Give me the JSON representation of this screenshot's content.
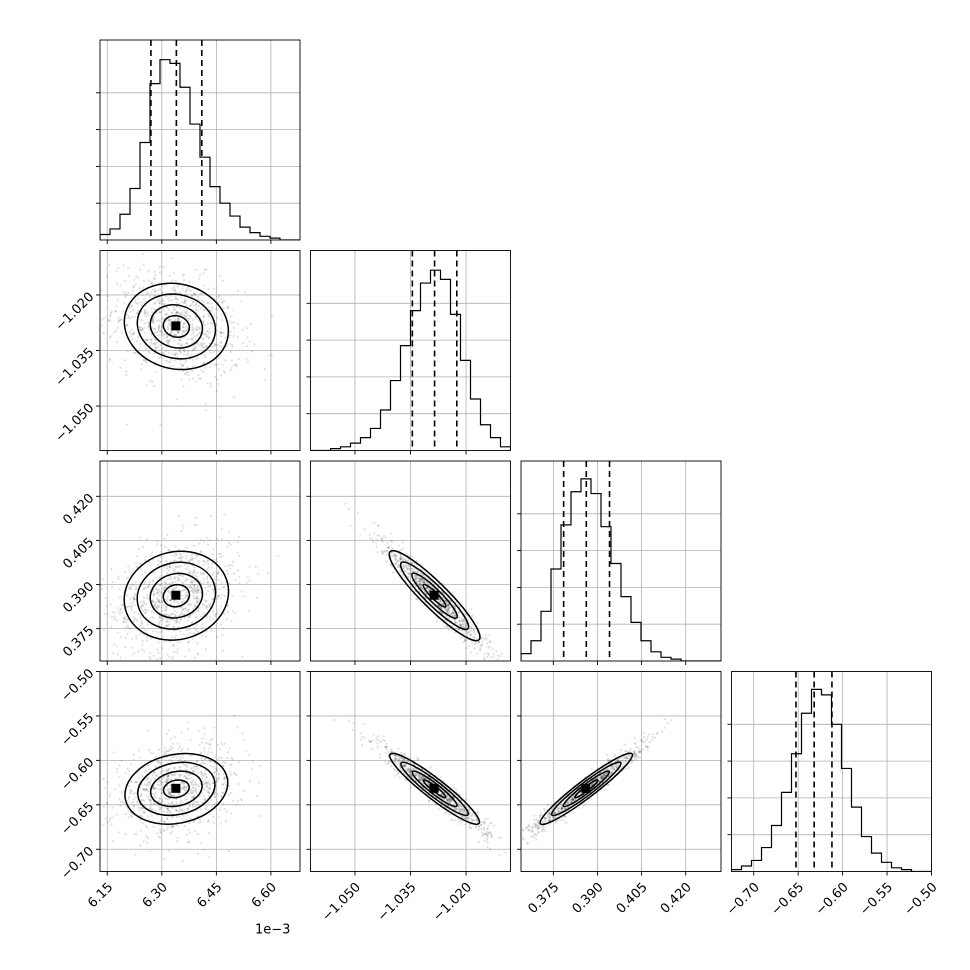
{
  "chart_data": {
    "type": "corner",
    "parameters": [
      {
        "range": [
          6.13,
          6.68
        ],
        "ticks": [
          6.15,
          6.3,
          6.45,
          6.6
        ],
        "tick_labels": [
          "6.15",
          "6.30",
          "6.45",
          "6.60"
        ],
        "offset_label": "1e−3",
        "median": 6.34,
        "q16": 6.27,
        "q84": 6.41
      },
      {
        "range": [
          -1.062,
          -1.008
        ],
        "ticks": [
          -1.05,
          -1.035,
          -1.02
        ],
        "tick_labels": [
          "−1.050",
          "−1.035",
          "−1.020"
        ],
        "median": -1.0285,
        "q16": -1.0345,
        "q84": -1.0225
      },
      {
        "range": [
          0.364,
          0.432
        ],
        "ticks": [
          0.375,
          0.39,
          0.405,
          0.42
        ],
        "tick_labels": [
          "0.375",
          "0.390",
          "0.405",
          "0.420"
        ],
        "median": 0.3862,
        "q16": 0.3785,
        "q84": 0.3941
      },
      {
        "range": [
          -0.725,
          -0.5
        ],
        "ticks": [
          -0.7,
          -0.65,
          -0.6,
          -0.55,
          -0.5
        ],
        "tick_labels": [
          "−0.70",
          "−0.65",
          "−0.60",
          "−0.55",
          "−0.50"
        ],
        "median": -0.632,
        "q16": -0.6525,
        "q84": -0.612
      }
    ],
    "histograms": [
      [
        0.03,
        0.06,
        0.14,
        0.28,
        0.53,
        0.85,
        0.98,
        0.96,
        0.83,
        0.63,
        0.45,
        0.29,
        0.2,
        0.13,
        0.07,
        0.04,
        0.02,
        0.01,
        0.0,
        0.0
      ],
      [
        0.0,
        0.0,
        0.01,
        0.02,
        0.04,
        0.07,
        0.12,
        0.22,
        0.38,
        0.57,
        0.76,
        0.91,
        0.98,
        0.93,
        0.74,
        0.49,
        0.28,
        0.14,
        0.07,
        0.02
      ],
      [
        0.04,
        0.11,
        0.27,
        0.5,
        0.74,
        0.92,
        0.99,
        0.91,
        0.73,
        0.53,
        0.35,
        0.21,
        0.11,
        0.05,
        0.02,
        0.01,
        0.0,
        0.0,
        0.0,
        0.0
      ],
      [
        0.01,
        0.03,
        0.06,
        0.13,
        0.25,
        0.43,
        0.64,
        0.86,
        0.99,
        0.96,
        0.8,
        0.56,
        0.35,
        0.19,
        0.1,
        0.05,
        0.02,
        0.01,
        0.0,
        0.0
      ]
    ],
    "correlations": [
      [
        1.0,
        -0.3,
        0.3,
        0.3
      ],
      [
        -0.3,
        1.0,
        -0.96,
        -0.96
      ],
      [
        0.3,
        -0.96,
        1.0,
        0.97
      ],
      [
        0.3,
        -0.96,
        0.97,
        1.0
      ]
    ],
    "grid": true,
    "quantiles": [
      0.16,
      0.5,
      0.84
    ]
  }
}
